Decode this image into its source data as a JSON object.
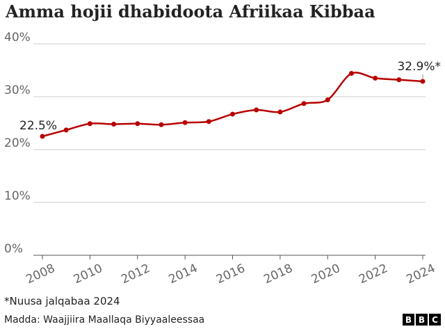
{
  "chart_data": {
    "type": "line",
    "title": "Amma hojii dhabidoota Afriikaa Kibbaa",
    "x": [
      2008,
      2009,
      2010,
      2011,
      2012,
      2013,
      2014,
      2015,
      2016,
      2017,
      2018,
      2019,
      2020,
      2021,
      2022,
      2023,
      2024
    ],
    "values": [
      22.5,
      23.7,
      24.9,
      24.8,
      24.9,
      24.7,
      25.1,
      25.3,
      26.7,
      27.5,
      27.1,
      28.7,
      29.4,
      34.4,
      33.5,
      33.2,
      32.9
    ],
    "ylim": [
      0,
      40
    ],
    "yticks": [
      "0%",
      "10%",
      "20%",
      "30%",
      "40%"
    ],
    "xticks": [
      "2008",
      "2010",
      "2012",
      "2014",
      "2016",
      "2018",
      "2020",
      "2022",
      "2024"
    ],
    "annotations": {
      "first": "22.5%",
      "last": "32.9%*"
    },
    "grid": true,
    "color": "#b80000"
  },
  "note": "*Nuusa jalqabaa 2024",
  "source": "Madda: Waajjiira Maallaqa Biyyaaleessaa",
  "logo": [
    "B",
    "B",
    "C"
  ]
}
